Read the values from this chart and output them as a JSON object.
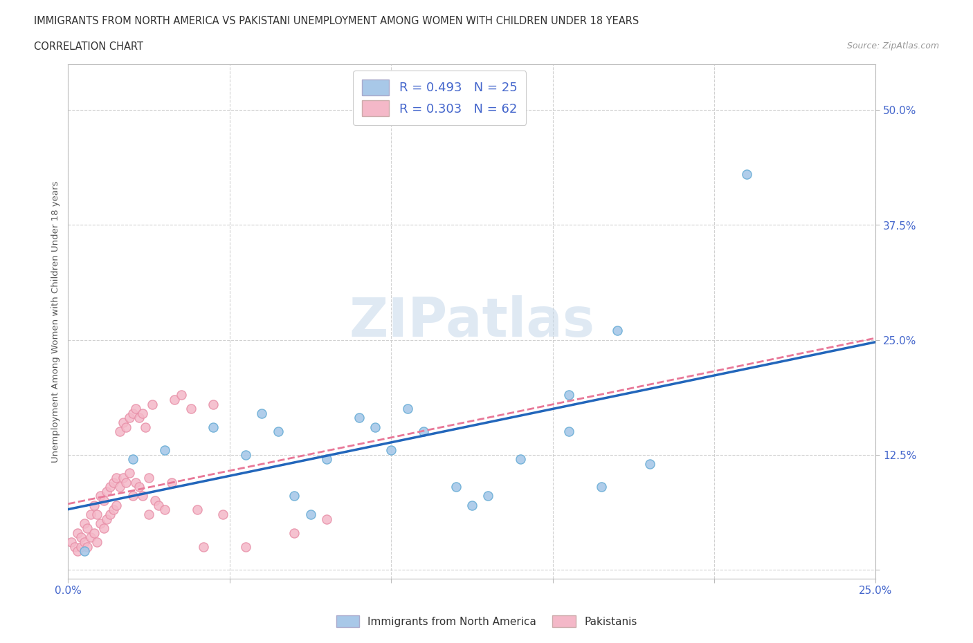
{
  "title_line1": "IMMIGRANTS FROM NORTH AMERICA VS PAKISTANI UNEMPLOYMENT AMONG WOMEN WITH CHILDREN UNDER 18 YEARS",
  "title_line2": "CORRELATION CHART",
  "source_text": "Source: ZipAtlas.com",
  "ylabel": "Unemployment Among Women with Children Under 18 years",
  "xlim": [
    0.0,
    0.25
  ],
  "ylim": [
    -0.01,
    0.55
  ],
  "xtick_positions": [
    0.0,
    0.05,
    0.1,
    0.15,
    0.2,
    0.25
  ],
  "ytick_positions": [
    0.0,
    0.125,
    0.25,
    0.375,
    0.5
  ],
  "blue_color": "#a8c8e8",
  "blue_edge_color": "#6aaed6",
  "pink_color": "#f4b8c8",
  "pink_edge_color": "#e890a8",
  "blue_line_color": "#2266bb",
  "pink_line_color": "#e87898",
  "axis_color": "#4466cc",
  "grid_color": "#cccccc",
  "background_color": "#ffffff",
  "title_color": "#333333",
  "blue_scatter_x": [
    0.005,
    0.02,
    0.03,
    0.045,
    0.055,
    0.06,
    0.065,
    0.07,
    0.075,
    0.08,
    0.09,
    0.095,
    0.1,
    0.105,
    0.11,
    0.12,
    0.125,
    0.13,
    0.14,
    0.155,
    0.155,
    0.165,
    0.17,
    0.18,
    0.21
  ],
  "blue_scatter_y": [
    0.02,
    0.12,
    0.13,
    0.155,
    0.125,
    0.17,
    0.15,
    0.08,
    0.06,
    0.12,
    0.165,
    0.155,
    0.13,
    0.175,
    0.15,
    0.09,
    0.07,
    0.08,
    0.12,
    0.15,
    0.19,
    0.09,
    0.26,
    0.115,
    0.43
  ],
  "pink_scatter_x": [
    0.001,
    0.002,
    0.003,
    0.003,
    0.004,
    0.004,
    0.005,
    0.005,
    0.006,
    0.006,
    0.007,
    0.007,
    0.008,
    0.008,
    0.009,
    0.009,
    0.01,
    0.01,
    0.011,
    0.011,
    0.012,
    0.012,
    0.013,
    0.013,
    0.014,
    0.014,
    0.015,
    0.015,
    0.016,
    0.016,
    0.017,
    0.017,
    0.018,
    0.018,
    0.019,
    0.019,
    0.02,
    0.02,
    0.021,
    0.021,
    0.022,
    0.022,
    0.023,
    0.023,
    0.024,
    0.025,
    0.025,
    0.026,
    0.027,
    0.028,
    0.03,
    0.032,
    0.033,
    0.035,
    0.038,
    0.04,
    0.042,
    0.045,
    0.048,
    0.055,
    0.07,
    0.08
  ],
  "pink_scatter_y": [
    0.03,
    0.025,
    0.04,
    0.02,
    0.035,
    0.025,
    0.05,
    0.03,
    0.045,
    0.025,
    0.06,
    0.035,
    0.07,
    0.04,
    0.06,
    0.03,
    0.08,
    0.05,
    0.075,
    0.045,
    0.085,
    0.055,
    0.09,
    0.06,
    0.095,
    0.065,
    0.1,
    0.07,
    0.15,
    0.09,
    0.16,
    0.1,
    0.155,
    0.095,
    0.165,
    0.105,
    0.17,
    0.08,
    0.175,
    0.095,
    0.165,
    0.09,
    0.17,
    0.08,
    0.155,
    0.1,
    0.06,
    0.18,
    0.075,
    0.07,
    0.065,
    0.095,
    0.185,
    0.19,
    0.175,
    0.065,
    0.025,
    0.18,
    0.06,
    0.025,
    0.04,
    0.055
  ]
}
